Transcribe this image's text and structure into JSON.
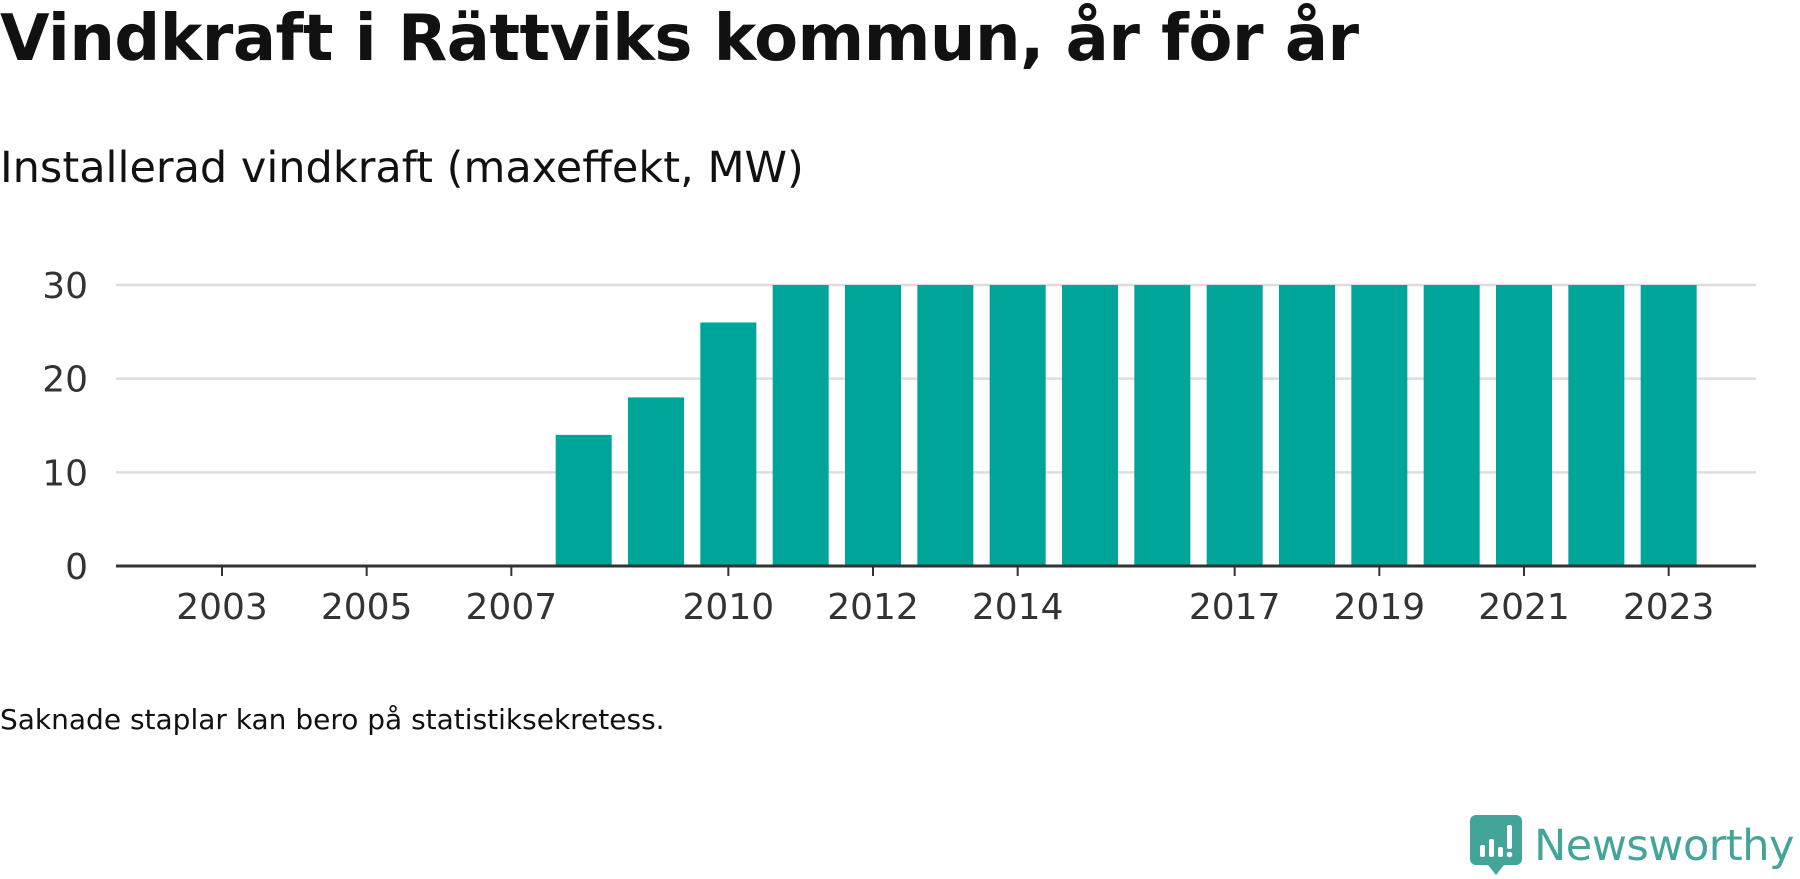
{
  "header": {
    "title": "Vindkraft i Rättviks kommun, år för år",
    "subtitle": "Installerad vindkraft (maxeffekt, MW)"
  },
  "footer": {
    "note": "Saknade staplar kan bero på statistiksekretess.",
    "brand_name": "Newsworthy",
    "brand_icon": "newsworthy-logo-icon",
    "brand_color": "#43a49a"
  },
  "chart_data": {
    "type": "bar",
    "title": "Vindkraft i Rättviks kommun, år för år",
    "subtitle": "Installerad vindkraft (maxeffekt, MW)",
    "xlabel": "",
    "ylabel": "",
    "categories": [
      "2003",
      "2004",
      "2005",
      "2006",
      "2007",
      "2008",
      "2009",
      "2010",
      "2011",
      "2012",
      "2013",
      "2014",
      "2015",
      "2016",
      "2017",
      "2018",
      "2019",
      "2020",
      "2021",
      "2022",
      "2023"
    ],
    "values": [
      0,
      0,
      0,
      0,
      0,
      14,
      18,
      26,
      30,
      30,
      30,
      30,
      30,
      30,
      30,
      30,
      30,
      30,
      30,
      30,
      30
    ],
    "x_tick_labels": [
      "2003",
      "2005",
      "2007",
      "2010",
      "2012",
      "2014",
      "2017",
      "2019",
      "2021",
      "2023"
    ],
    "y_ticks": [
      0,
      10,
      20,
      30
    ],
    "ylim": [
      0,
      30
    ],
    "grid": true,
    "legend": "none",
    "bar_color": "#00a59a",
    "grid_color": "#dddddd",
    "axis_color": "#333333"
  }
}
